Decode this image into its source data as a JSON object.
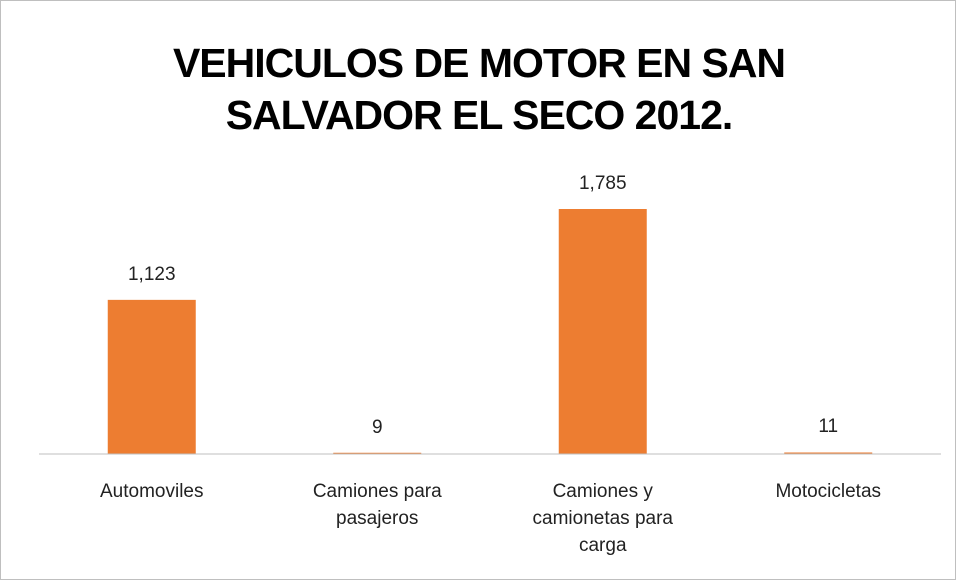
{
  "chart_data": {
    "type": "bar",
    "title": "VEHICULOS DE MOTOR EN SAN SALVADOR EL SECO 2012.",
    "categories": [
      "Automoviles",
      "Camiones para pasajeros",
      "Camiones y camionetas para carga",
      "Motocicletas"
    ],
    "values": [
      1123,
      9,
      1785,
      11
    ],
    "value_labels": [
      "1,123",
      "9",
      "1,785",
      "11"
    ],
    "color": "#ed7d31"
  }
}
